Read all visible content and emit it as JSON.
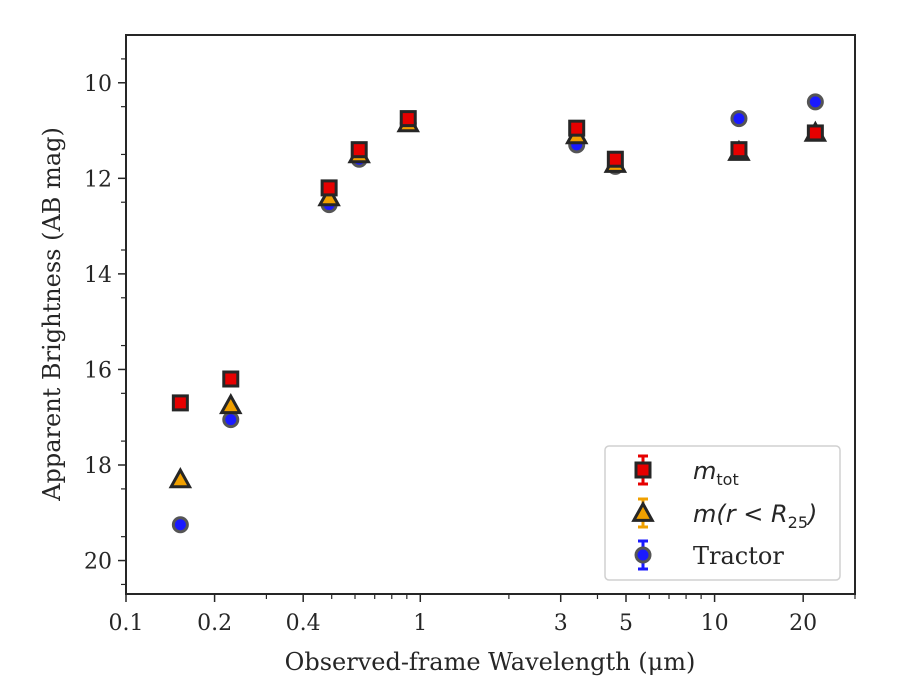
{
  "chart_data": {
    "type": "scatter",
    "xlabel": "Observed-frame Wavelength (μm)",
    "ylabel": "Apparent Brightness (AB mag)",
    "xscale": "log",
    "xlim": [
      0.1,
      30
    ],
    "ylim": [
      20.7,
      9.0
    ],
    "y_inverted": true,
    "xticks": [
      {
        "value": 0.1,
        "label": "0.1"
      },
      {
        "value": 0.2,
        "label": "0.2"
      },
      {
        "value": 0.4,
        "label": "0.4"
      },
      {
        "value": 1,
        "label": "1"
      },
      {
        "value": 3,
        "label": "3"
      },
      {
        "value": 5,
        "label": "5"
      },
      {
        "value": 10,
        "label": "10"
      },
      {
        "value": 20,
        "label": "20"
      }
    ],
    "yticks": [
      10,
      12,
      14,
      16,
      18,
      20
    ],
    "grid": false,
    "legend_position": "lower-right",
    "series": [
      {
        "name": "m_tot",
        "marker": "square",
        "color": "#e60000",
        "x": [
          0.153,
          0.227,
          0.49,
          0.62,
          0.91,
          3.4,
          4.6,
          12.1,
          22.0
        ],
        "y": [
          16.7,
          16.2,
          12.2,
          11.4,
          10.75,
          10.95,
          11.6,
          11.4,
          11.05
        ]
      },
      {
        "name": "m(r<R25)",
        "marker": "triangle",
        "color": "#f0a000",
        "x": [
          0.153,
          0.227,
          0.49,
          0.62,
          0.91,
          3.4,
          4.6,
          12.1,
          22.0
        ],
        "y": [
          18.3,
          16.75,
          12.4,
          11.5,
          10.85,
          11.1,
          11.7,
          11.45,
          11.05
        ]
      },
      {
        "name": "Tractor",
        "marker": "circle",
        "color": "#1a1aff",
        "x": [
          0.153,
          0.227,
          0.49,
          0.62,
          0.91,
          3.4,
          4.6,
          12.1,
          22.0
        ],
        "y": [
          19.25,
          17.05,
          12.55,
          11.6,
          10.85,
          11.3,
          11.75,
          10.75,
          10.4
        ]
      }
    ],
    "legend": [
      {
        "math": "m",
        "sub": "tot",
        "text": ""
      },
      {
        "math": "m",
        "sub": "25",
        "text": "(r < R",
        "suffix": ")"
      },
      {
        "math": "",
        "sub": "",
        "text": "Tractor"
      }
    ]
  }
}
